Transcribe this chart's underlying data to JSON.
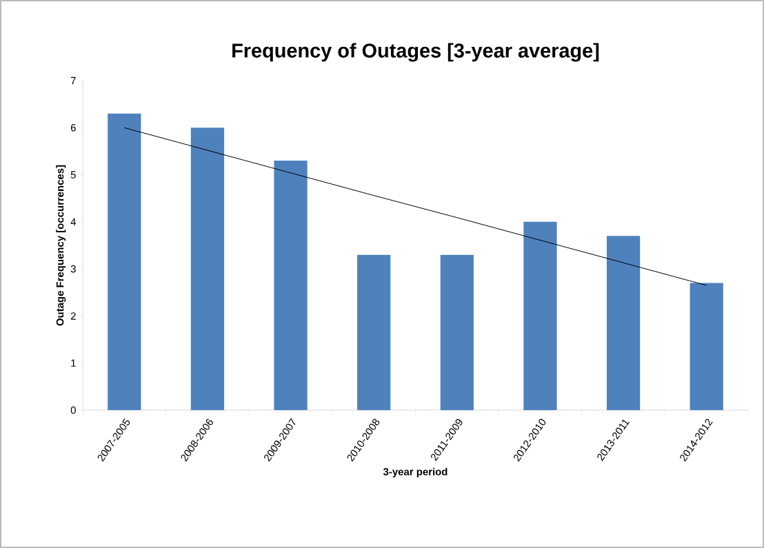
{
  "chart_data": {
    "type": "bar",
    "title": "Frequency of Outages [3-year average]",
    "xlabel": "3-year period",
    "ylabel": "Outage Frequency [occurrences]",
    "categories": [
      "2007-2005",
      "2008-2006",
      "2009-2007",
      "2010-2008",
      "2011-2009",
      "2012-2010",
      "2013-2011",
      "2014-2012"
    ],
    "series": [
      {
        "color": "#4f81bd",
        "values": [
          6.3,
          6.0,
          5.3,
          3.3,
          3.3,
          4.0,
          3.7,
          2.7
        ]
      },
      {
        "type": "line",
        "color": "#000000",
        "values": [
          6.0,
          5.52,
          5.04,
          4.56,
          4.09,
          3.61,
          3.13,
          2.65
        ]
      }
    ],
    "ylim": [
      0,
      7
    ],
    "yticks": [
      0,
      1,
      2,
      3,
      4,
      5,
      6,
      7
    ]
  }
}
